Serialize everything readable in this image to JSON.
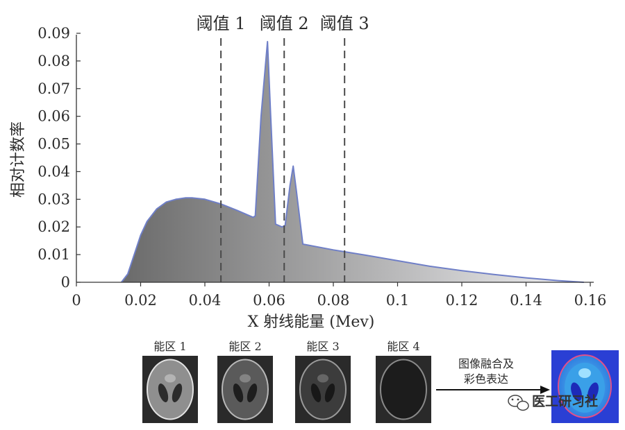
{
  "chart_data": {
    "type": "area",
    "xlabel": "X 射线能量 (Mev)",
    "ylabel": "相对计数率",
    "xlim": [
      0,
      0.16
    ],
    "ylim": [
      0,
      0.09
    ],
    "x_ticks": [
      "0",
      "0.02",
      "0.04",
      "0.06",
      "0.08",
      "0.1",
      "0.12",
      "0.14",
      "0.16"
    ],
    "x_tick_values": [
      0,
      0.02,
      0.04,
      0.06,
      0.08,
      0.1,
      0.12,
      0.14,
      0.16
    ],
    "y_ticks": [
      "0",
      "0.01",
      "0.02",
      "0.03",
      "0.04",
      "0.05",
      "0.06",
      "0.07",
      "0.08",
      "0.09"
    ],
    "y_tick_values": [
      0,
      0.01,
      0.02,
      0.03,
      0.04,
      0.05,
      0.06,
      0.07,
      0.08,
      0.09
    ],
    "series": [
      {
        "x": [
          0.014,
          0.016,
          0.018,
          0.02,
          0.022,
          0.025,
          0.028,
          0.031,
          0.034,
          0.036,
          0.04,
          0.045,
          0.05,
          0.055,
          0.0557,
          0.0575,
          0.0595,
          0.0605,
          0.062,
          0.064,
          0.065,
          0.0665,
          0.0675,
          0.0685,
          0.0705,
          0.08,
          0.09,
          0.1,
          0.11,
          0.12,
          0.13,
          0.14,
          0.15,
          0.158
        ],
        "y": [
          0.0,
          0.003,
          0.01,
          0.017,
          0.022,
          0.0265,
          0.029,
          0.03,
          0.0305,
          0.0305,
          0.03,
          0.0283,
          0.026,
          0.0235,
          0.024,
          0.06,
          0.087,
          0.06,
          0.021,
          0.02,
          0.0205,
          0.035,
          0.042,
          0.033,
          0.0138,
          0.0117,
          0.0098,
          0.0078,
          0.0058,
          0.0042,
          0.0028,
          0.0016,
          0.0006,
          0.0
        ]
      }
    ],
    "thresholds": [
      {
        "label": "阈值 1",
        "x": 0.045
      },
      {
        "label": "阈值 2",
        "x": 0.0647
      },
      {
        "label": "阈值 3",
        "x": 0.0835
      }
    ],
    "colors": {
      "line": "#6f7fc7",
      "fill_dark": "#6a6a6a",
      "fill_light": "#f0f0f2",
      "threshold": "#4a4a4a"
    }
  },
  "panels": [
    {
      "label": "能区 1",
      "tone": "#8f8f8f",
      "inner": "#2c2c2c",
      "ring": "#e2e2e2"
    },
    {
      "label": "能区 2",
      "tone": "#5a5a5a",
      "inner": "#1e1e1e",
      "ring": "#b8b8b8"
    },
    {
      "label": "能区 3",
      "tone": "#3c3c3c",
      "inner": "#181818",
      "ring": "#9a9a9a"
    },
    {
      "label": "能区 4",
      "tone": "#1c1c1c",
      "inner": "#1c1c1c",
      "ring": "#8a8a8a"
    }
  ],
  "fusion": {
    "line1": "图像融合及",
    "line2": "彩色表达",
    "colors": {
      "bg": "#2a3fd4",
      "outer": "#3aa0e8",
      "ring": "#e0508a",
      "inner": "#9fe0ff",
      "core": "#1d2ab8"
    }
  },
  "watermark": {
    "text": "医工研习社",
    "icon": "wechat-icon"
  }
}
